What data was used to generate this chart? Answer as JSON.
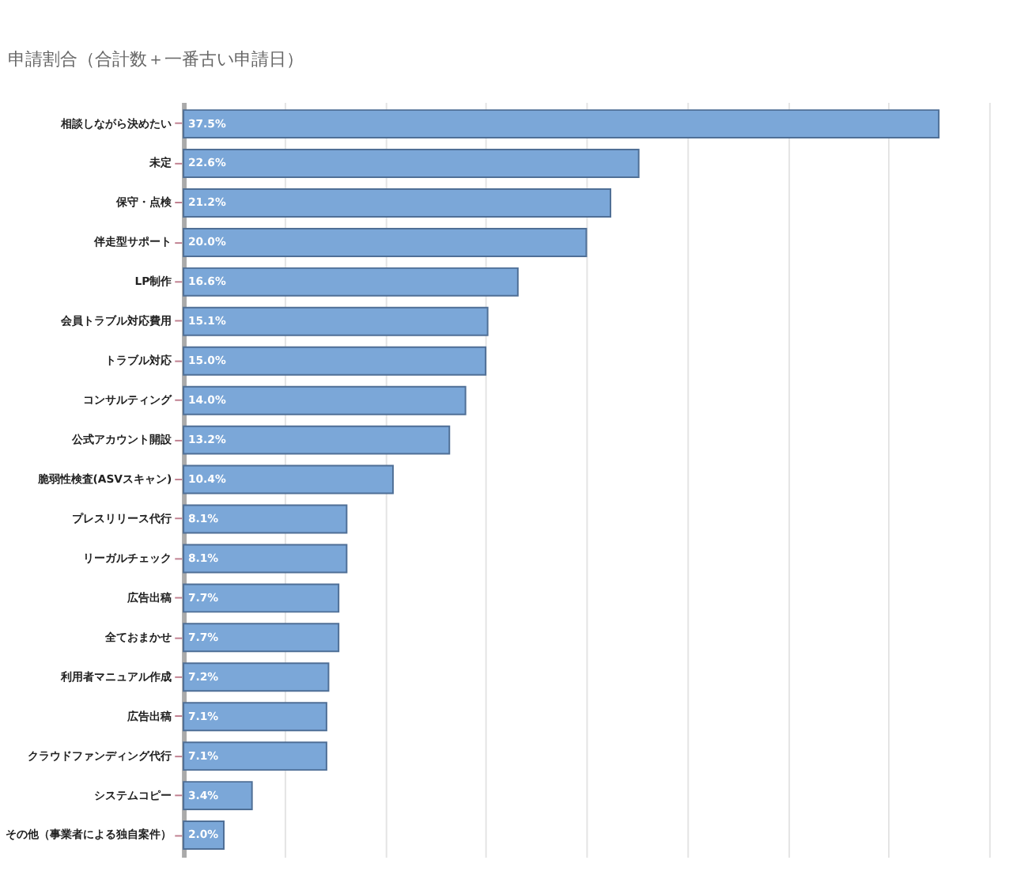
{
  "chart_data": {
    "type": "bar",
    "orientation": "horizontal",
    "title": "申請割合（合計数＋一番古い申請日）",
    "categories": [
      "相談しながら決めたい",
      "未定",
      "保守・点検",
      "伴走型サポート",
      "LP制作",
      "会員トラブル対応費用",
      "トラブル対応",
      "コンサルティング",
      "公式アカウント開設",
      "脆弱性検査(ASVスキャン)",
      "プレスリリース代行",
      "リーガルチェック",
      "広告出稿",
      "全ておまかせ",
      "利用者マニュアル作成",
      "広告出稿",
      "クラウドファンディング代行",
      "システムコピー",
      "その他（事業者による独自案件）"
    ],
    "values": [
      37.5,
      22.6,
      21.2,
      20.0,
      16.6,
      15.1,
      15.0,
      14.0,
      13.2,
      10.4,
      8.1,
      8.1,
      7.7,
      7.7,
      7.2,
      7.1,
      7.1,
      3.4,
      2.0
    ],
    "value_labels": [
      "37.5%",
      "22.6%",
      "21.2%",
      "20.0%",
      "16.6%",
      "15.1%",
      "15.0%",
      "14.0%",
      "13.2%",
      "10.4%",
      "8.1%",
      "8.1%",
      "7.7%",
      "7.7%",
      "7.2%",
      "7.1%",
      "7.1%",
      "3.4%",
      "2.0%"
    ],
    "color": "#7ba7d8",
    "xlim": [
      0,
      40
    ],
    "xticks": [
      {
        "value": 0,
        "label": null
      },
      {
        "value": 5,
        "label": null
      },
      {
        "value": 10,
        "label": null
      },
      {
        "value": 15,
        "label": null
      },
      {
        "value": 20,
        "label": null
      },
      {
        "value": 25,
        "label": null
      },
      {
        "value": 30,
        "label": null
      },
      {
        "value": 35,
        "label": null
      },
      {
        "value": 40,
        "label": null
      }
    ],
    "grid": "x",
    "tick_labels": "y"
  }
}
